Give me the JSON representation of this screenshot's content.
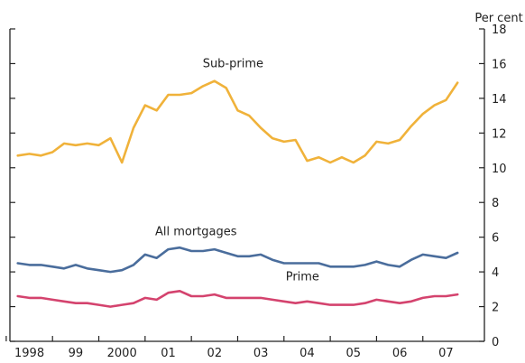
{
  "chart_data": {
    "type": "line",
    "unit_label": "Per cent",
    "ylim": [
      0,
      18
    ],
    "y_ticks": [
      0,
      2,
      4,
      6,
      8,
      10,
      12,
      14,
      16,
      18
    ],
    "x_range": [
      1997.58,
      2007.83
    ],
    "x_ticks": [
      {
        "pos": 1998.0,
        "label": "1998"
      },
      {
        "pos": 1999.0,
        "label": "99"
      },
      {
        "pos": 2000.0,
        "label": "2000"
      },
      {
        "pos": 2001.0,
        "label": "01"
      },
      {
        "pos": 2002.0,
        "label": "02"
      },
      {
        "pos": 2003.0,
        "label": "03"
      },
      {
        "pos": 2004.0,
        "label": "04"
      },
      {
        "pos": 2005.0,
        "label": "05"
      },
      {
        "pos": 2006.0,
        "label": "06"
      },
      {
        "pos": 2007.0,
        "label": "07"
      }
    ],
    "grid": false,
    "series": [
      {
        "name": "Sub-prime",
        "color": "#f0b23a",
        "x": [
          1997.75,
          1998.0,
          1998.25,
          1998.5,
          1998.75,
          1999.0,
          1999.25,
          1999.5,
          1999.75,
          2000.0,
          2000.25,
          2000.5,
          2000.75,
          2001.0,
          2001.25,
          2001.5,
          2001.75,
          2002.0,
          2002.25,
          2002.5,
          2002.75,
          2003.0,
          2003.25,
          2003.5,
          2003.75,
          2004.0,
          2004.25,
          2004.5,
          2004.75,
          2005.0,
          2005.25,
          2005.5,
          2005.75,
          2006.0,
          2006.25,
          2006.5,
          2006.75,
          2007.0,
          2007.25
        ],
        "y": [
          10.7,
          10.8,
          10.7,
          10.9,
          11.4,
          11.3,
          11.4,
          11.3,
          11.7,
          10.3,
          12.3,
          13.6,
          13.3,
          14.2,
          14.2,
          14.3,
          14.7,
          15.0,
          14.6,
          13.3,
          13.0,
          12.3,
          11.7,
          11.5,
          11.6,
          10.4,
          10.6,
          10.3,
          10.6,
          10.3,
          10.7,
          11.5,
          11.4,
          11.6,
          12.4,
          13.1,
          13.6,
          13.9,
          14.9
        ]
      },
      {
        "name": "All mortgages",
        "color": "#4a6d9c",
        "x": [
          1997.75,
          1998.0,
          1998.25,
          1998.5,
          1998.75,
          1999.0,
          1999.25,
          1999.5,
          1999.75,
          2000.0,
          2000.25,
          2000.5,
          2000.75,
          2001.0,
          2001.25,
          2001.5,
          2001.75,
          2002.0,
          2002.25,
          2002.5,
          2002.75,
          2003.0,
          2003.25,
          2003.5,
          2003.75,
          2004.0,
          2004.25,
          2004.5,
          2004.75,
          2005.0,
          2005.25,
          2005.5,
          2005.75,
          2006.0,
          2006.25,
          2006.5,
          2006.75,
          2007.0,
          2007.25
        ],
        "y": [
          4.5,
          4.4,
          4.4,
          4.3,
          4.2,
          4.4,
          4.2,
          4.1,
          4.0,
          4.1,
          4.4,
          5.0,
          4.8,
          5.3,
          5.4,
          5.2,
          5.2,
          5.3,
          5.1,
          4.9,
          4.9,
          5.0,
          4.7,
          4.5,
          4.5,
          4.5,
          4.5,
          4.3,
          4.3,
          4.3,
          4.4,
          4.6,
          4.4,
          4.3,
          4.7,
          5.0,
          4.9,
          4.8,
          5.1
        ]
      },
      {
        "name": "Prime",
        "color": "#d4436e",
        "x": [
          1997.75,
          1998.0,
          1998.25,
          1998.5,
          1998.75,
          1999.0,
          1999.25,
          1999.5,
          1999.75,
          2000.0,
          2000.25,
          2000.5,
          2000.75,
          2001.0,
          2001.25,
          2001.5,
          2001.75,
          2002.0,
          2002.25,
          2002.5,
          2002.75,
          2003.0,
          2003.25,
          2003.5,
          2003.75,
          2004.0,
          2004.25,
          2004.5,
          2004.75,
          2005.0,
          2005.25,
          2005.5,
          2005.75,
          2006.0,
          2006.25,
          2006.5,
          2006.75,
          2007.0,
          2007.25
        ],
        "y": [
          2.6,
          2.5,
          2.5,
          2.4,
          2.3,
          2.2,
          2.2,
          2.1,
          2.0,
          2.1,
          2.2,
          2.5,
          2.4,
          2.8,
          2.9,
          2.6,
          2.6,
          2.7,
          2.5,
          2.5,
          2.5,
          2.5,
          2.4,
          2.3,
          2.2,
          2.3,
          2.2,
          2.1,
          2.1,
          2.1,
          2.2,
          2.4,
          2.3,
          2.2,
          2.3,
          2.5,
          2.6,
          2.6,
          2.7
        ]
      }
    ],
    "annotations": [
      {
        "text": "Sub-prime",
        "series": 0,
        "x": 2002.4,
        "y": 15.8
      },
      {
        "text": "All mortgages",
        "series": 1,
        "x": 2001.6,
        "y": 6.1
      },
      {
        "text": "Prime",
        "series": 2,
        "x": 2003.9,
        "y": 3.5
      }
    ]
  }
}
